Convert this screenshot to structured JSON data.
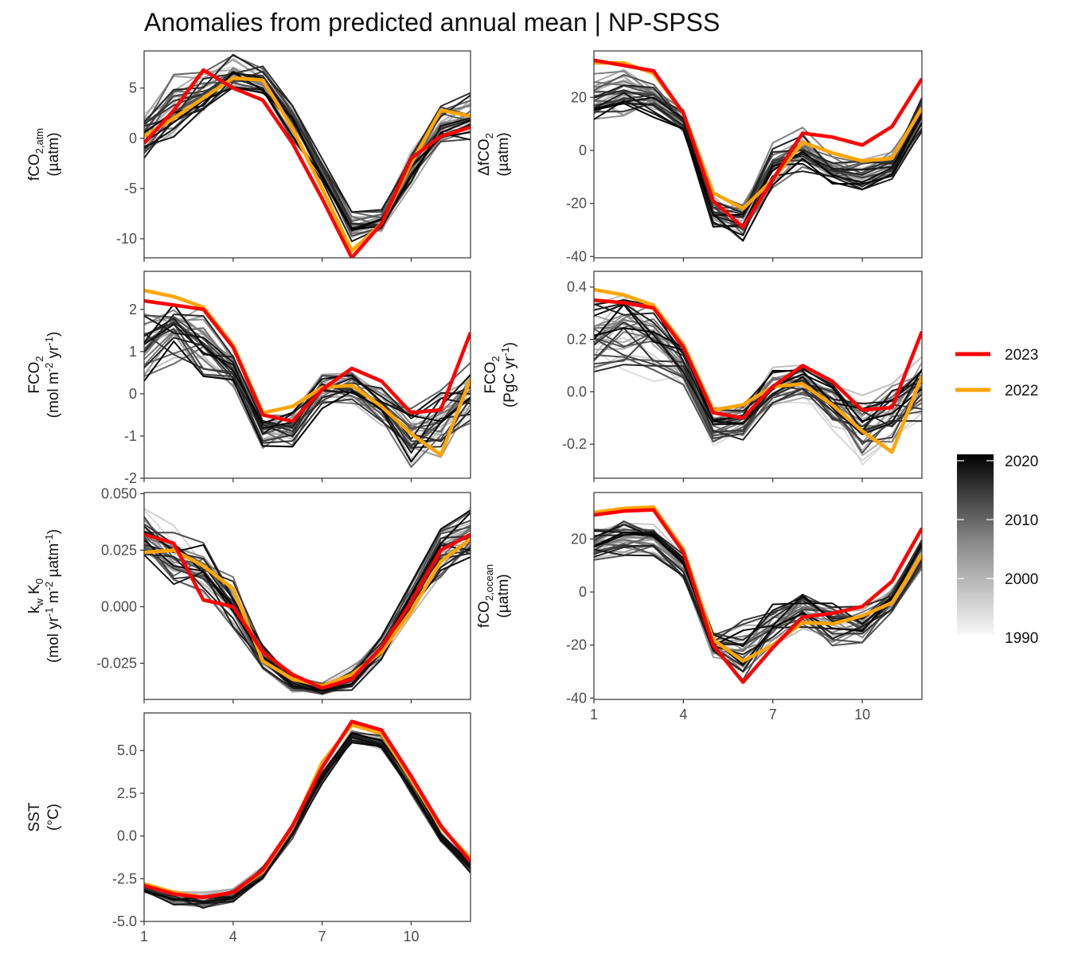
{
  "title": "Anomalies from predicted annual mean | NP-SPSS",
  "colors": {
    "year_2023": "#ff0000",
    "year_2022": "#ffa500",
    "gradient_low": "#f2f2f2",
    "gradient_high": "#000000",
    "frame": "#333333"
  },
  "legend": {
    "items": [
      {
        "label": "2023",
        "color": "#ff0000"
      },
      {
        "label": "2022",
        "color": "#ffa500"
      }
    ],
    "gradient_labels": [
      "2020",
      "2010",
      "2000",
      "1990"
    ]
  },
  "chart_data": [
    {
      "type": "line",
      "ylabel_line1": [
        {
          "t": "fCO"
        },
        {
          "t": "2,atm",
          "s": "sub"
        }
      ],
      "ylabel_line2": [
        {
          "t": "(µatm)"
        }
      ],
      "x_ticks": [
        1,
        4,
        7,
        10
      ],
      "x_tick_labels": [],
      "xlim": [
        1,
        12
      ],
      "ylim": [
        -11.9,
        8.7
      ],
      "y_ticks": [
        5,
        0,
        -5,
        -10
      ],
      "y_tick_labels": [
        "5",
        "0",
        "-5",
        "-10"
      ],
      "grid": false,
      "background_years": "1990-2021",
      "background_envelope": {
        "x": [
          1,
          2,
          3,
          4,
          5,
          6,
          7,
          8,
          9,
          10,
          11,
          12
        ],
        "min": [
          -2.2,
          -1.5,
          1.5,
          4.2,
          3.8,
          -0.5,
          -4.5,
          -10.5,
          -9.8,
          -5.0,
          -1.2,
          -0.5
        ],
        "max": [
          3.0,
          7.0,
          7.7,
          8.5,
          7.5,
          4.0,
          -2.0,
          -7.0,
          -6.8,
          -1.0,
          4.0,
          5.0
        ]
      },
      "series": [
        {
          "name": "2023",
          "x": [
            1,
            2,
            3,
            4,
            5,
            6,
            7,
            8,
            9,
            10,
            11,
            12
          ],
          "y": [
            -0.5,
            2.8,
            6.8,
            5.0,
            3.8,
            -0.5,
            -6.0,
            -11.9,
            -8.5,
            -2.0,
            0.2,
            1.1
          ]
        },
        {
          "name": "2022",
          "x": [
            1,
            2,
            3,
            4,
            5,
            6,
            7,
            8,
            9,
            10,
            11,
            12
          ],
          "y": [
            0.2,
            2.0,
            4.0,
            6.0,
            5.8,
            1.0,
            -5.0,
            -11.2,
            -8.5,
            -2.5,
            2.8,
            2.2
          ]
        }
      ]
    },
    {
      "type": "line",
      "ylabel_line1": [
        {
          "t": "ΔfCO"
        },
        {
          "t": "2",
          "s": "sub"
        }
      ],
      "ylabel_line2": [
        {
          "t": "(µatm)"
        }
      ],
      "x_ticks": [
        1,
        4,
        7,
        10
      ],
      "x_tick_labels": [],
      "xlim": [
        1,
        12
      ],
      "ylim": [
        -40.5,
        37.5
      ],
      "y_ticks": [
        20,
        0,
        -20,
        -40
      ],
      "y_tick_labels": [
        "20",
        "0",
        "-20",
        "-40"
      ],
      "grid": false,
      "background_years": "1990-2021",
      "background_envelope": {
        "x": [
          1,
          2,
          3,
          4,
          5,
          6,
          7,
          8,
          9,
          10,
          11,
          12
        ],
        "min": [
          8.0,
          7.0,
          10.0,
          5.0,
          -32.0,
          -38.0,
          -16.0,
          -10.0,
          -14.0,
          -17.0,
          -12.0,
          5.0
        ],
        "max": [
          30.0,
          32.0,
          28.0,
          16.0,
          -15.0,
          -18.0,
          3.0,
          9.0,
          -2.0,
          -2.0,
          0.0,
          22.0
        ]
      },
      "series": [
        {
          "name": "2023",
          "x": [
            1,
            2,
            3,
            4,
            5,
            6,
            7,
            8,
            9,
            10,
            11,
            12
          ],
          "y": [
            34.0,
            32.0,
            30.0,
            14.0,
            -19.0,
            -29.0,
            -11.0,
            6.5,
            5.0,
            2.0,
            9.0,
            27.0
          ]
        },
        {
          "name": "2022",
          "x": [
            1,
            2,
            3,
            4,
            5,
            6,
            7,
            8,
            9,
            10,
            11,
            12
          ],
          "y": [
            33.0,
            33.0,
            29.0,
            14.0,
            -16.0,
            -22.0,
            -11.0,
            3.0,
            -1.0,
            -4.0,
            -3.0,
            16.0
          ]
        }
      ]
    },
    {
      "type": "line",
      "ylabel_line1": [
        {
          "t": "FCO"
        },
        {
          "t": "2",
          "s": "sub"
        }
      ],
      "ylabel_line2": [
        {
          "t": "(mol m"
        },
        {
          "t": "-2",
          "s": "sup"
        },
        {
          "t": " yr"
        },
        {
          "t": "-1",
          "s": "sup"
        },
        {
          "t": ")"
        }
      ],
      "x_ticks": [
        1,
        4,
        7,
        10
      ],
      "x_tick_labels": [],
      "xlim": [
        1,
        12
      ],
      "ylim": [
        -2.0,
        2.9
      ],
      "y_ticks": [
        2,
        1,
        0,
        -1,
        -2
      ],
      "y_tick_labels": [
        "2",
        "1",
        "0",
        "-1",
        "-2"
      ],
      "grid": false,
      "background_years": "1990-2021",
      "background_envelope": {
        "x": [
          1,
          2,
          3,
          4,
          5,
          6,
          7,
          8,
          9,
          10,
          11,
          12
        ],
        "min": [
          0.2,
          0.3,
          0.2,
          0.0,
          -1.35,
          -1.3,
          -0.4,
          -0.3,
          -0.9,
          -1.85,
          -1.6,
          -0.9
        ],
        "max": [
          2.3,
          2.75,
          2.3,
          1.2,
          -0.3,
          -0.2,
          0.65,
          0.7,
          0.4,
          0.0,
          0.5,
          1.2
        ]
      },
      "series": [
        {
          "name": "2023",
          "x": [
            1,
            2,
            3,
            4,
            5,
            6,
            7,
            8,
            9,
            10,
            11,
            12
          ],
          "y": [
            2.2,
            2.1,
            2.0,
            1.1,
            -0.5,
            -0.65,
            0.1,
            0.6,
            0.3,
            -0.45,
            -0.38,
            1.45
          ]
        },
        {
          "name": "2022",
          "x": [
            1,
            2,
            3,
            4,
            5,
            6,
            7,
            8,
            9,
            10,
            11,
            12
          ],
          "y": [
            2.45,
            2.3,
            2.05,
            1.15,
            -0.45,
            -0.3,
            0.15,
            0.2,
            -0.3,
            -0.95,
            -1.45,
            0.35
          ]
        }
      ]
    },
    {
      "type": "line",
      "ylabel_line1": [
        {
          "t": "FCO"
        },
        {
          "t": "2",
          "s": "sub"
        }
      ],
      "ylabel_line2": [
        {
          "t": "(PgC yr"
        },
        {
          "t": "-1",
          "s": "sup"
        },
        {
          "t": ")"
        }
      ],
      "x_ticks": [
        1,
        4,
        7,
        10
      ],
      "x_tick_labels": [],
      "xlim": [
        1,
        12
      ],
      "ylim": [
        -0.33,
        0.46
      ],
      "y_ticks": [
        0.4,
        0.2,
        0.0,
        -0.2
      ],
      "y_tick_labels": [
        "0.4",
        "0.2",
        "0.0",
        "-0.2"
      ],
      "grid": false,
      "background_years": "1990-2021",
      "background_envelope": {
        "x": [
          1,
          2,
          3,
          4,
          5,
          6,
          7,
          8,
          9,
          10,
          11,
          12
        ],
        "min": [
          0.03,
          0.05,
          0.03,
          0.0,
          -0.21,
          -0.2,
          -0.07,
          -0.05,
          -0.15,
          -0.29,
          -0.25,
          -0.14
        ],
        "max": [
          0.37,
          0.43,
          0.37,
          0.19,
          -0.05,
          -0.03,
          0.1,
          0.11,
          0.06,
          0.0,
          0.08,
          0.19
        ]
      },
      "series": [
        {
          "name": "2023",
          "x": [
            1,
            2,
            3,
            4,
            5,
            6,
            7,
            8,
            9,
            10,
            11,
            12
          ],
          "y": [
            0.35,
            0.34,
            0.32,
            0.17,
            -0.08,
            -0.1,
            0.02,
            0.1,
            0.04,
            -0.07,
            -0.06,
            0.23
          ]
        },
        {
          "name": "2022",
          "x": [
            1,
            2,
            3,
            4,
            5,
            6,
            7,
            8,
            9,
            10,
            11,
            12
          ],
          "y": [
            0.39,
            0.37,
            0.33,
            0.18,
            -0.07,
            -0.05,
            0.02,
            0.03,
            -0.05,
            -0.15,
            -0.23,
            0.06
          ]
        }
      ]
    },
    {
      "type": "line",
      "ylabel_line1": [
        {
          "t": "k"
        },
        {
          "t": "w",
          "s": "sub"
        },
        {
          "t": " K"
        },
        {
          "t": "0",
          "s": "sub"
        }
      ],
      "ylabel_line2": [
        {
          "t": "(mol yr"
        },
        {
          "t": "-1",
          "s": "sup"
        },
        {
          "t": " m"
        },
        {
          "t": "-2",
          "s": "sup"
        },
        {
          "t": " µatm"
        },
        {
          "t": "-1",
          "s": "sup"
        },
        {
          "t": ")"
        }
      ],
      "x_ticks": [
        1,
        4,
        7,
        10
      ],
      "x_tick_labels": [],
      "xlim": [
        1,
        12
      ],
      "ylim": [
        -0.041,
        0.0505
      ],
      "y_ticks": [
        0.05,
        0.025,
        0.0,
        -0.025
      ],
      "y_tick_labels": [
        "0.050",
        "0.025",
        "0.000",
        "-0.025"
      ],
      "grid": false,
      "background_years": "1990-2021",
      "background_envelope": {
        "x": [
          1,
          2,
          3,
          4,
          5,
          6,
          7,
          8,
          9,
          10,
          11,
          12
        ],
        "min": [
          0.018,
          0.004,
          0.003,
          -0.012,
          -0.03,
          -0.038,
          -0.04,
          -0.038,
          -0.025,
          -0.005,
          0.01,
          0.018
        ],
        "max": [
          0.046,
          0.037,
          0.03,
          0.018,
          -0.015,
          -0.03,
          -0.033,
          -0.024,
          -0.012,
          0.014,
          0.04,
          0.047
        ]
      },
      "series": [
        {
          "name": "2023",
          "x": [
            1,
            2,
            3,
            4,
            5,
            6,
            7,
            8,
            9,
            10,
            11,
            12
          ],
          "y": [
            0.032,
            0.028,
            0.003,
            0.0,
            -0.02,
            -0.03,
            -0.036,
            -0.032,
            -0.018,
            0.002,
            0.025,
            0.032
          ]
        },
        {
          "name": "2022",
          "x": [
            1,
            2,
            3,
            4,
            5,
            6,
            7,
            8,
            9,
            10,
            11,
            12
          ],
          "y": [
            0.024,
            0.025,
            0.018,
            0.008,
            -0.024,
            -0.032,
            -0.035,
            -0.03,
            -0.02,
            -0.002,
            0.02,
            0.03
          ]
        }
      ]
    },
    {
      "type": "line",
      "ylabel_line1": [
        {
          "t": "fCO"
        },
        {
          "t": "2,ocean",
          "s": "sub"
        }
      ],
      "ylabel_line2": [
        {
          "t": "(µatm)"
        }
      ],
      "x_ticks": [
        1,
        4,
        7,
        10
      ],
      "x_tick_labels": [
        "1",
        "4",
        "7",
        "10"
      ],
      "xlim": [
        1,
        12
      ],
      "ylim": [
        -40.5,
        37.5
      ],
      "y_ticks": [
        20,
        0,
        -20,
        -40
      ],
      "y_tick_labels": [
        "20",
        "0",
        "-20",
        "-40"
      ],
      "grid": false,
      "background_years": "1990-2021",
      "background_envelope": {
        "x": [
          1,
          2,
          3,
          4,
          5,
          6,
          7,
          8,
          9,
          10,
          11,
          12
        ],
        "min": [
          10.0,
          12.0,
          12.0,
          5.0,
          -25.0,
          -36.0,
          -22.0,
          -16.0,
          -21.0,
          -20.0,
          -8.0,
          8.0
        ],
        "max": [
          25.0,
          28.0,
          26.0,
          15.0,
          -15.0,
          -10.0,
          -3.0,
          2.0,
          -1.0,
          -5.0,
          2.0,
          20.0
        ]
      },
      "series": [
        {
          "name": "2023",
          "x": [
            1,
            2,
            3,
            4,
            5,
            6,
            7,
            8,
            9,
            10,
            11,
            12
          ],
          "y": [
            29.0,
            30.5,
            31.0,
            15.0,
            -20.0,
            -34.0,
            -21.0,
            -9.5,
            -8.0,
            -5.5,
            4.0,
            24.0
          ]
        },
        {
          "name": "2022",
          "x": [
            1,
            2,
            3,
            4,
            5,
            6,
            7,
            8,
            9,
            10,
            11,
            12
          ],
          "y": [
            30.0,
            31.5,
            32.0,
            16.0,
            -18.0,
            -26.0,
            -20.0,
            -11.5,
            -12.0,
            -9.0,
            -4.0,
            14.0
          ]
        }
      ]
    },
    {
      "type": "line",
      "ylabel_line1": [
        {
          "t": "SST"
        }
      ],
      "ylabel_line2": [
        {
          "t": "(°C)"
        }
      ],
      "x_ticks": [
        1,
        4,
        7,
        10
      ],
      "x_tick_labels": [
        "1",
        "4",
        "7",
        "10"
      ],
      "xlim": [
        1,
        12
      ],
      "ylim": [
        -5.0,
        7.2
      ],
      "y_ticks": [
        5.0,
        2.5,
        0.0,
        -2.5,
        -5.0
      ],
      "y_tick_labels": [
        "5.0",
        "2.5",
        "0.0",
        "-2.5",
        "-5.0"
      ],
      "grid": false,
      "background_years": "1990-2021",
      "background_envelope": {
        "x": [
          1,
          2,
          3,
          4,
          5,
          6,
          7,
          8,
          9,
          10,
          11,
          12
        ],
        "min": [
          -3.5,
          -4.1,
          -4.4,
          -4.0,
          -2.7,
          -0.3,
          3.0,
          5.3,
          5.0,
          2.3,
          -0.5,
          -2.2
        ],
        "max": [
          -2.7,
          -3.1,
          -3.2,
          -3.0,
          -1.7,
          0.8,
          4.0,
          6.3,
          6.0,
          3.3,
          0.3,
          -1.4
        ]
      },
      "series": [
        {
          "name": "2023",
          "x": [
            1,
            2,
            3,
            4,
            5,
            6,
            7,
            8,
            9,
            10,
            11,
            12
          ],
          "y": [
            -2.9,
            -3.4,
            -3.6,
            -3.3,
            -2.0,
            0.6,
            4.0,
            6.7,
            6.2,
            3.5,
            0.6,
            -1.5
          ]
        },
        {
          "name": "2022",
          "x": [
            1,
            2,
            3,
            4,
            5,
            6,
            7,
            8,
            9,
            10,
            11,
            12
          ],
          "y": [
            -2.8,
            -3.3,
            -3.6,
            -3.3,
            -2.1,
            0.5,
            4.3,
            6.5,
            6.0,
            3.3,
            0.5,
            -1.3
          ]
        }
      ]
    }
  ]
}
